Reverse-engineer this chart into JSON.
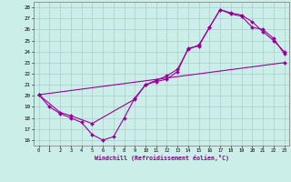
{
  "xlabel": "Windchill (Refroidissement éolien,°C)",
  "xlim": [
    -0.5,
    23.5
  ],
  "ylim": [
    15.5,
    28.5
  ],
  "xticks": [
    0,
    1,
    2,
    3,
    4,
    5,
    6,
    7,
    8,
    9,
    10,
    11,
    12,
    13,
    14,
    15,
    16,
    17,
    18,
    19,
    20,
    21,
    22,
    23
  ],
  "yticks": [
    16,
    17,
    18,
    19,
    20,
    21,
    22,
    23,
    24,
    25,
    26,
    27,
    28
  ],
  "bg_color": "#cceee8",
  "line_color": "#990099",
  "grid_color": "#aacccc",
  "line1_x": [
    0,
    1,
    2,
    3,
    4,
    5,
    6,
    7,
    8,
    9,
    10,
    11,
    12,
    13,
    14,
    15,
    16,
    17,
    18,
    19,
    20,
    21,
    22,
    23
  ],
  "line1_y": [
    20.1,
    19.0,
    18.4,
    18.0,
    17.6,
    16.5,
    16.0,
    16.3,
    18.0,
    19.8,
    21.0,
    21.3,
    21.5,
    22.2,
    24.3,
    24.5,
    26.2,
    27.8,
    27.5,
    27.3,
    26.7,
    25.8,
    25.0,
    24.0
  ],
  "line2_x": [
    0,
    2,
    3,
    5,
    9,
    10,
    11,
    12,
    13,
    14,
    15,
    16,
    17,
    18,
    19,
    20,
    21,
    22,
    23
  ],
  "line2_y": [
    20.1,
    18.5,
    18.2,
    17.5,
    19.7,
    21.0,
    21.4,
    21.8,
    22.4,
    24.2,
    24.6,
    26.2,
    27.8,
    27.4,
    27.2,
    26.2,
    26.0,
    25.2,
    23.8
  ],
  "line3_x": [
    0,
    23
  ],
  "line3_y": [
    20.1,
    23.0
  ]
}
